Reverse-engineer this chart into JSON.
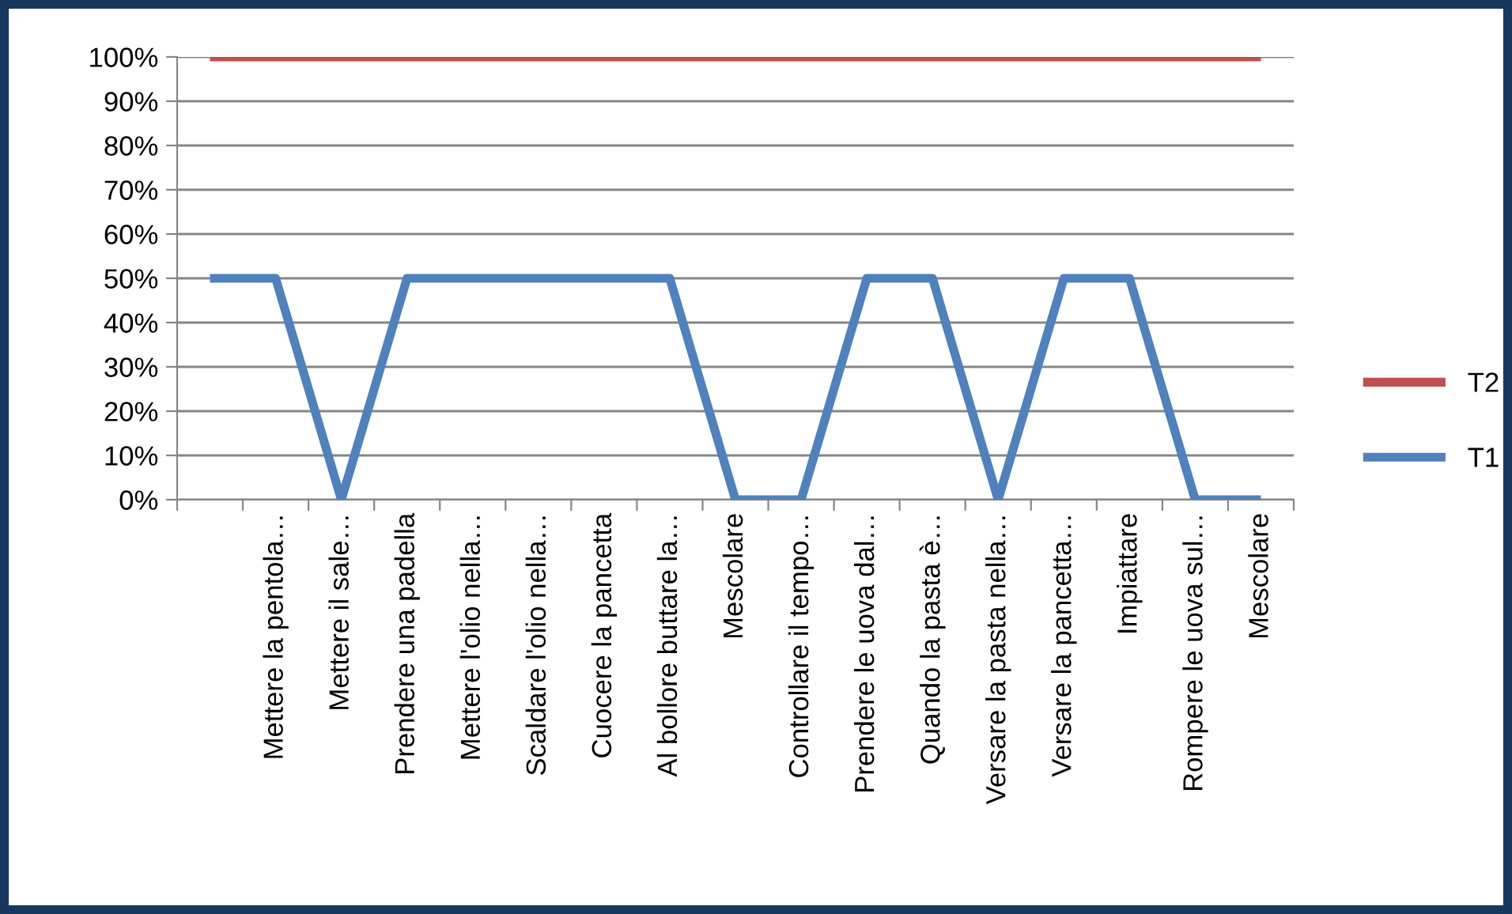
{
  "chart_data": {
    "type": "line",
    "categories": [
      null,
      "Mettere la pentola…",
      "Mettere il sale…",
      "Prendere una padella",
      "Mettere l'olio nella…",
      "Scaldare l'olio nella…",
      "Cuocere la pancetta",
      "Al bollore buttare la…",
      "Mescolare",
      "Controllare il tempo…",
      "Prendere le uova dal…",
      "Quando la pasta è…",
      "Versare la pasta nella…",
      "Versare la pancetta…",
      "Impiattare",
      "Rompere le uova sul…",
      "Mescolare"
    ],
    "series": [
      {
        "name": "T1",
        "color": "#4f81bd",
        "values": [
          50,
          50,
          0,
          50,
          50,
          50,
          50,
          50,
          0,
          0,
          50,
          50,
          0,
          50,
          50,
          0,
          0
        ]
      },
      {
        "name": "T2",
        "color": "#c0504d",
        "values": [
          100,
          100,
          100,
          100,
          100,
          100,
          100,
          100,
          100,
          100,
          100,
          100,
          100,
          100,
          100,
          100,
          100
        ]
      }
    ],
    "ylim": [
      0,
      100
    ],
    "yticks": [
      {
        "value": 0,
        "label": "0%"
      },
      {
        "value": 10,
        "label": "10%"
      },
      {
        "value": 20,
        "label": "20%"
      },
      {
        "value": 30,
        "label": "30%"
      },
      {
        "value": 40,
        "label": "40%"
      },
      {
        "value": 50,
        "label": "50%"
      },
      {
        "value": 60,
        "label": "60%"
      },
      {
        "value": 70,
        "label": "70%"
      },
      {
        "value": 80,
        "label": "80%"
      },
      {
        "value": 90,
        "label": "90%"
      },
      {
        "value": 100,
        "label": "100%"
      }
    ],
    "grid": "y",
    "legend": "right",
    "marker": "none",
    "line_style": "solid"
  }
}
